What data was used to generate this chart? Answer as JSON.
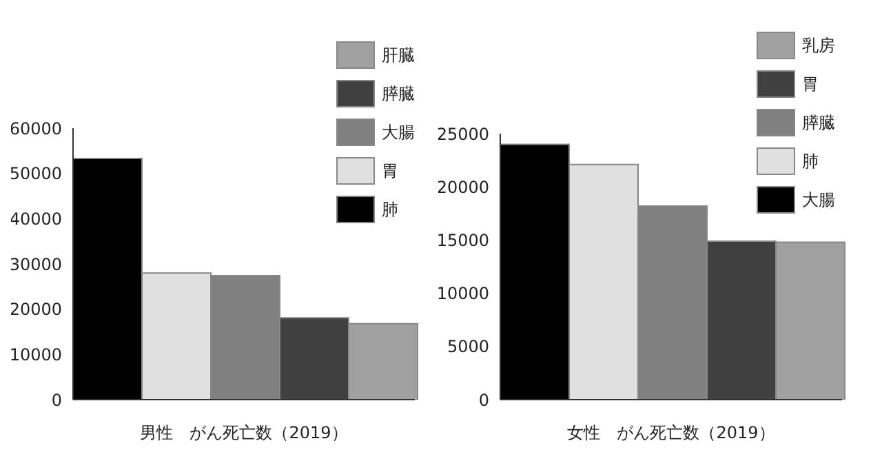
{
  "chart_data": [
    {
      "type": "bar",
      "xlabel": "男性　がん死亡数（2019）",
      "categories": [
        null
      ],
      "series": [
        {
          "name": "肺",
          "color": "#000000",
          "values": [
            53300
          ]
        },
        {
          "name": "胃",
          "color": "#e0e0e0",
          "values": [
            28000
          ]
        },
        {
          "name": "大腸",
          "color": "#808080",
          "values": [
            27400
          ]
        },
        {
          "name": "膵臓",
          "color": "#404040",
          "values": [
            18100
          ]
        },
        {
          "name": "肝臓",
          "color": "#a0a0a0",
          "values": [
            16800
          ]
        }
      ],
      "ylim": [
        0,
        60000
      ],
      "yticks": [
        0,
        10000,
        20000,
        30000,
        40000,
        50000,
        60000
      ],
      "grid": false,
      "legend": "top right",
      "tick_labels": "y"
    },
    {
      "type": "bar",
      "xlabel": "女性　がん死亡数（2019）",
      "categories": [
        null
      ],
      "series": [
        {
          "name": "大腸",
          "color": "#000000",
          "values": [
            24000
          ]
        },
        {
          "name": "肺",
          "color": "#e0e0e0",
          "values": [
            22100
          ]
        },
        {
          "name": "膵臓",
          "color": "#808080",
          "values": [
            18200
          ]
        },
        {
          "name": "胃",
          "color": "#404040",
          "values": [
            14900
          ]
        },
        {
          "name": "乳房",
          "color": "#a0a0a0",
          "values": [
            14800
          ]
        }
      ],
      "ylim": [
        0,
        25000
      ],
      "yticks": [
        0,
        5000,
        10000,
        15000,
        20000,
        25000
      ],
      "grid": false,
      "legend": "top right",
      "tick_labels": "y"
    }
  ]
}
